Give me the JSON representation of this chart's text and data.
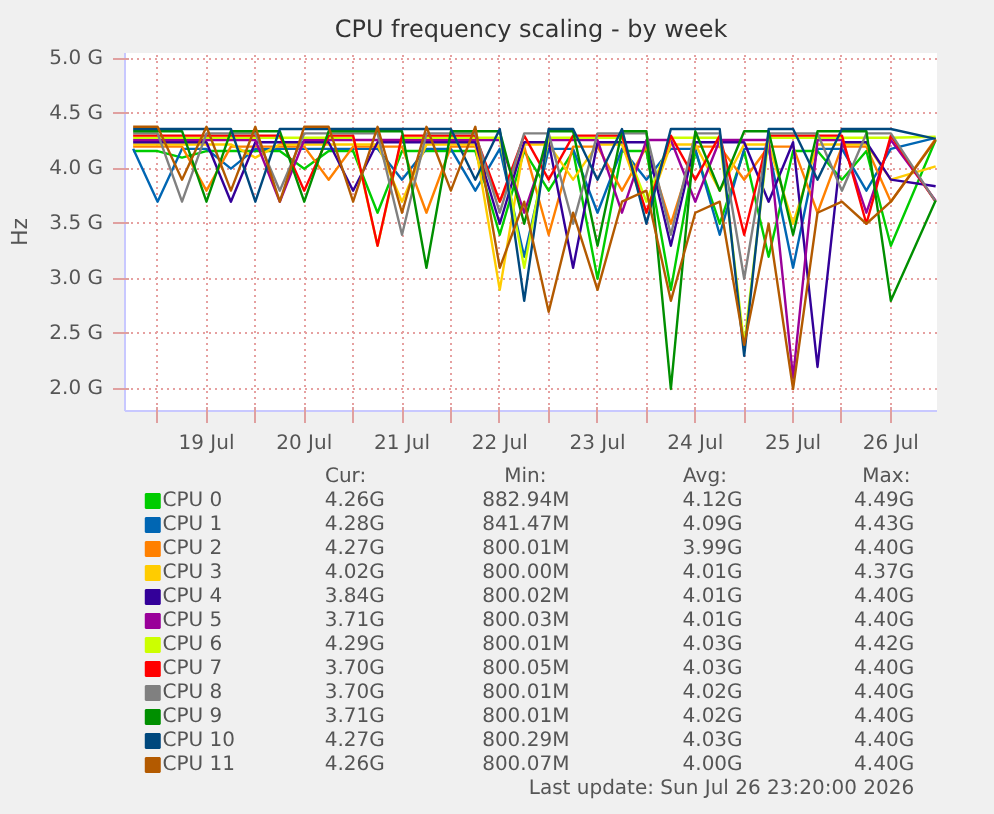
{
  "chart_data": {
    "type": "line",
    "title": "CPU frequency scaling - by week",
    "ylabel": "Hz",
    "x": [
      "2026-07-18T18:00",
      "2026-07-19T00:00",
      "2026-07-19T06:00",
      "2026-07-19T12:00",
      "2026-07-19T18:00",
      "2026-07-20T00:00",
      "2026-07-20T06:00",
      "2026-07-20T12:00",
      "2026-07-20T18:00",
      "2026-07-21T00:00",
      "2026-07-21T06:00",
      "2026-07-21T12:00",
      "2026-07-21T18:00",
      "2026-07-22T00:00",
      "2026-07-22T06:00",
      "2026-07-22T12:00",
      "2026-07-22T18:00",
      "2026-07-23T00:00",
      "2026-07-23T06:00",
      "2026-07-23T12:00",
      "2026-07-23T18:00",
      "2026-07-24T00:00",
      "2026-07-24T06:00",
      "2026-07-24T12:00",
      "2026-07-24T18:00",
      "2026-07-25T00:00",
      "2026-07-25T06:00",
      "2026-07-25T12:00",
      "2026-07-25T18:00",
      "2026-07-26T00:00",
      "2026-07-26T06:00",
      "2026-07-26T12:00",
      "2026-07-26T23:00"
    ],
    "xlim": [
      "2026-07-18T16:00",
      "2026-07-26T23:20"
    ],
    "xticks": [
      {
        "value": "2026-07-19T00:00",
        "label": null
      },
      {
        "value": "2026-07-19T12:00",
        "label": "19 Jul"
      },
      {
        "value": "2026-07-20T00:00",
        "label": null
      },
      {
        "value": "2026-07-20T12:00",
        "label": "20 Jul"
      },
      {
        "value": "2026-07-21T00:00",
        "label": null
      },
      {
        "value": "2026-07-21T12:00",
        "label": "21 Jul"
      },
      {
        "value": "2026-07-22T00:00",
        "label": null
      },
      {
        "value": "2026-07-22T12:00",
        "label": "22 Jul"
      },
      {
        "value": "2026-07-23T00:00",
        "label": null
      },
      {
        "value": "2026-07-23T12:00",
        "label": "23 Jul"
      },
      {
        "value": "2026-07-24T00:00",
        "label": null
      },
      {
        "value": "2026-07-24T12:00",
        "label": "24 Jul"
      },
      {
        "value": "2026-07-25T00:00",
        "label": null
      },
      {
        "value": "2026-07-25T12:00",
        "label": "25 Jul"
      },
      {
        "value": "2026-07-26T00:00",
        "label": null
      },
      {
        "value": "2026-07-26T12:00",
        "label": "26 Jul"
      }
    ],
    "ylim": [
      1.8,
      5.05
    ],
    "yticks": [
      {
        "value": 2.0,
        "label": "2.0 G"
      },
      {
        "value": 2.5,
        "label": "2.5 G"
      },
      {
        "value": 3.0,
        "label": "3.0 G"
      },
      {
        "value": 3.5,
        "label": "3.5 G"
      },
      {
        "value": 4.0,
        "label": "4.0 G"
      },
      {
        "value": 4.5,
        "label": "4.5 G"
      },
      {
        "value": 5.0,
        "label": "5.0 G"
      }
    ],
    "grid": true,
    "legend": "bottom",
    "line_style": "solid",
    "marker": "none",
    "series": [
      {
        "name": "CPU 0",
        "color": "#00cc00",
        "values": [
          4.16,
          4.16,
          4.1,
          4.16,
          4.16,
          4.16,
          4.16,
          4.0,
          4.16,
          4.16,
          3.6,
          4.16,
          4.16,
          4.16,
          4.16,
          3.4,
          4.16,
          3.8,
          4.16,
          3.0,
          4.16,
          4.16,
          2.9,
          4.16,
          3.5,
          4.16,
          3.2,
          4.16,
          4.16,
          3.9,
          4.16,
          3.3,
          4.26
        ]
      },
      {
        "name": "CPU 1",
        "color": "#0066b3",
        "values": [
          4.18,
          3.7,
          4.18,
          4.18,
          4.0,
          4.18,
          4.18,
          4.18,
          4.18,
          4.18,
          4.18,
          3.9,
          4.18,
          4.18,
          3.8,
          4.18,
          3.2,
          4.18,
          4.18,
          3.6,
          4.18,
          3.9,
          4.18,
          4.18,
          3.4,
          4.18,
          4.18,
          3.1,
          4.18,
          4.18,
          3.8,
          4.18,
          4.28
        ]
      },
      {
        "name": "CPU 2",
        "color": "#ff8000",
        "values": [
          4.2,
          4.2,
          4.2,
          3.8,
          4.2,
          4.2,
          4.2,
          4.2,
          3.9,
          4.2,
          4.2,
          4.2,
          3.6,
          4.2,
          4.2,
          3.7,
          4.2,
          3.4,
          4.2,
          4.2,
          3.8,
          4.2,
          3.5,
          4.2,
          4.2,
          3.9,
          4.2,
          4.2,
          3.6,
          4.2,
          4.2,
          3.7,
          4.27
        ]
      },
      {
        "name": "CPU 3",
        "color": "#ffcc00",
        "values": [
          4.22,
          4.22,
          4.22,
          4.22,
          4.22,
          4.1,
          4.22,
          4.22,
          4.22,
          4.22,
          4.22,
          3.7,
          4.22,
          4.22,
          4.22,
          2.9,
          4.22,
          4.22,
          3.9,
          4.22,
          4.22,
          3.6,
          4.22,
          4.22,
          3.8,
          4.22,
          4.22,
          3.5,
          4.22,
          4.22,
          4.22,
          3.9,
          4.02
        ]
      },
      {
        "name": "CPU 4",
        "color": "#330099",
        "values": [
          4.24,
          4.24,
          4.24,
          4.24,
          3.7,
          4.24,
          4.24,
          4.24,
          4.24,
          3.8,
          4.24,
          4.24,
          4.24,
          4.24,
          4.24,
          3.5,
          4.24,
          4.24,
          3.1,
          4.24,
          4.24,
          4.24,
          3.3,
          4.24,
          4.24,
          4.24,
          3.7,
          4.24,
          2.2,
          4.24,
          4.24,
          3.9,
          3.84
        ]
      },
      {
        "name": "CPU 5",
        "color": "#990099",
        "values": [
          4.26,
          4.26,
          4.26,
          4.26,
          4.26,
          4.26,
          3.7,
          4.26,
          4.26,
          4.26,
          4.26,
          4.26,
          4.26,
          4.26,
          4.26,
          4.26,
          3.6,
          4.26,
          4.26,
          4.26,
          3.6,
          4.26,
          4.26,
          3.7,
          4.26,
          4.26,
          4.26,
          2.1,
          4.26,
          4.26,
          3.6,
          4.26,
          3.71
        ]
      },
      {
        "name": "CPU 6",
        "color": "#ccff00",
        "values": [
          4.28,
          4.28,
          4.28,
          4.28,
          4.28,
          4.28,
          4.28,
          4.28,
          4.28,
          4.28,
          3.3,
          4.28,
          4.28,
          4.28,
          4.28,
          4.28,
          3.1,
          4.28,
          4.28,
          4.28,
          4.28,
          3.7,
          4.28,
          4.28,
          4.28,
          2.4,
          4.28,
          4.28,
          4.28,
          4.28,
          4.28,
          4.28,
          4.29
        ]
      },
      {
        "name": "CPU 7",
        "color": "#ff0000",
        "values": [
          4.3,
          4.3,
          4.3,
          4.3,
          4.3,
          4.3,
          4.3,
          3.8,
          4.3,
          4.3,
          3.3,
          4.3,
          4.3,
          4.3,
          4.3,
          3.7,
          4.3,
          3.9,
          4.3,
          4.3,
          4.3,
          3.6,
          4.3,
          3.9,
          4.3,
          3.4,
          4.3,
          4.3,
          4.3,
          4.3,
          3.5,
          4.3,
          3.7
        ]
      },
      {
        "name": "CPU 8",
        "color": "#808080",
        "values": [
          4.32,
          4.32,
          3.7,
          4.32,
          4.32,
          4.32,
          3.8,
          4.32,
          4.32,
          4.32,
          4.32,
          3.4,
          4.32,
          4.32,
          4.32,
          3.6,
          4.32,
          4.32,
          3.5,
          4.32,
          4.32,
          4.32,
          3.4,
          4.32,
          4.32,
          3.0,
          4.32,
          4.32,
          4.32,
          3.8,
          4.32,
          4.32,
          3.7
        ]
      },
      {
        "name": "CPU 9",
        "color": "#008f00",
        "values": [
          4.34,
          4.34,
          4.34,
          3.7,
          4.34,
          4.34,
          4.34,
          3.7,
          4.34,
          4.34,
          4.34,
          4.34,
          3.1,
          4.34,
          4.34,
          4.34,
          3.5,
          4.34,
          4.34,
          3.3,
          4.34,
          4.34,
          2.0,
          4.34,
          3.8,
          4.34,
          4.34,
          3.4,
          4.34,
          4.34,
          4.34,
          2.8,
          3.71
        ]
      },
      {
        "name": "CPU 10",
        "color": "#00487d",
        "values": [
          4.36,
          4.36,
          4.36,
          4.36,
          4.36,
          3.7,
          4.36,
          4.36,
          4.36,
          4.36,
          4.36,
          4.36,
          4.36,
          4.36,
          3.9,
          4.36,
          2.8,
          4.36,
          4.36,
          3.9,
          4.36,
          3.5,
          4.36,
          4.36,
          4.36,
          2.3,
          4.36,
          4.36,
          3.9,
          4.36,
          4.36,
          4.36,
          4.27
        ]
      },
      {
        "name": "CPU 11",
        "color": "#b35a00",
        "values": [
          4.38,
          4.38,
          3.9,
          4.38,
          3.8,
          4.38,
          3.7,
          4.38,
          4.38,
          3.7,
          4.38,
          3.6,
          4.38,
          3.8,
          4.38,
          3.1,
          3.7,
          2.7,
          3.6,
          2.9,
          3.7,
          3.8,
          2.8,
          3.6,
          3.7,
          2.4,
          3.5,
          2.0,
          3.6,
          3.7,
          3.5,
          3.7,
          4.26
        ]
      }
    ],
    "annotations": [
      "Cur:",
      "Min:",
      "Avg:",
      "Max:",
      "4.26G",
      "882.94M",
      "4.12G",
      "4.49G",
      "4.28G",
      "841.47M",
      "4.09G",
      "4.43G",
      "4.27G",
      "800.01M",
      "3.99G",
      "4.40G",
      "4.02G",
      "800.00M",
      "4.01G",
      "4.37G",
      "3.84G",
      "800.02M",
      "4.01G",
      "4.40G",
      "3.71G",
      "800.03M",
      "4.01G",
      "4.40G",
      "4.29G",
      "800.01M",
      "4.03G",
      "4.42G",
      "3.70G",
      "800.05M",
      "4.03G",
      "4.40G",
      "3.70G",
      "800.01M",
      "4.02G",
      "4.40G",
      "3.71G",
      "800.01M",
      "4.02G",
      "4.40G",
      "4.27G",
      "800.29M",
      "4.03G",
      "4.40G",
      "4.26G",
      "800.07M",
      "4.00G",
      "4.40G",
      "Last update: Sun Jul 26 23:20:00 2026"
    ]
  }
}
